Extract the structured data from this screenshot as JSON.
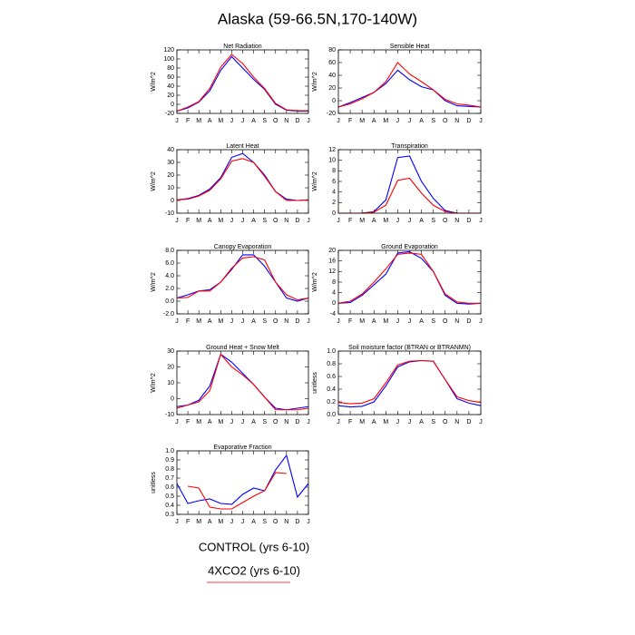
{
  "title": "Alaska (59-66.5N,170-140W)",
  "chart_data": [
    {
      "type": "line",
      "title": "Net Radiation",
      "ylabel": "W/m^2",
      "categories": [
        "J",
        "F",
        "M",
        "A",
        "M",
        "J",
        "J",
        "A",
        "S",
        "O",
        "N",
        "D",
        "J"
      ],
      "ylim": [
        -20,
        120
      ],
      "yticks": [
        -20,
        0,
        20,
        40,
        60,
        80,
        100,
        120
      ],
      "series": [
        {
          "name": "CONTROL (yrs 6-10)",
          "color": "#0000ff",
          "values": [
            -15,
            -8,
            5,
            30,
            75,
            105,
            80,
            55,
            33,
            0,
            -13,
            -15,
            -15
          ]
        },
        {
          "name": "4XCO2 (yrs 6-10)",
          "color": "#ff0000",
          "values": [
            -15,
            -6,
            6,
            35,
            82,
            110,
            90,
            60,
            35,
            2,
            -12,
            -14,
            -14
          ]
        }
      ]
    },
    {
      "type": "line",
      "title": "Sensible Heat",
      "ylabel": "W/m^2",
      "categories": [
        "J",
        "F",
        "M",
        "A",
        "M",
        "J",
        "J",
        "A",
        "S",
        "O",
        "N",
        "D",
        "J"
      ],
      "ylim": [
        -20,
        80
      ],
      "yticks": [
        -20,
        0,
        20,
        40,
        60,
        80
      ],
      "series": [
        {
          "name": "CONTROL (yrs 6-10)",
          "color": "#0000ff",
          "values": [
            -10,
            -3,
            5,
            13,
            27,
            48,
            33,
            22,
            17,
            0,
            -8,
            -9,
            -10
          ]
        },
        {
          "name": "4XCO2 (yrs 6-10)",
          "color": "#ff0000",
          "values": [
            -10,
            -5,
            3,
            13,
            30,
            60,
            42,
            30,
            17,
            2,
            -5,
            -7,
            -10
          ]
        }
      ]
    },
    {
      "type": "line",
      "title": "Latent Heat",
      "ylabel": "W/m^2",
      "categories": [
        "J",
        "F",
        "M",
        "A",
        "M",
        "J",
        "J",
        "A",
        "S",
        "O",
        "N",
        "D",
        "J"
      ],
      "ylim": [
        -10,
        40
      ],
      "yticks": [
        -10,
        0,
        10,
        20,
        30,
        40
      ],
      "series": [
        {
          "name": "CONTROL (yrs 6-10)",
          "color": "#0000ff",
          "values": [
            0.5,
            1.5,
            4,
            9,
            18,
            34,
            37,
            30,
            20,
            7,
            1,
            0,
            0.5
          ]
        },
        {
          "name": "4XCO2 (yrs 6-10)",
          "color": "#ff0000",
          "values": [
            0.5,
            1,
            3.5,
            8,
            17,
            31,
            33,
            30,
            19,
            7,
            0,
            0,
            0.5
          ]
        }
      ]
    },
    {
      "type": "line",
      "title": "Transpiration",
      "ylabel": "W/m^2",
      "categories": [
        "J",
        "F",
        "M",
        "A",
        "M",
        "J",
        "J",
        "A",
        "S",
        "O",
        "N",
        "D",
        "J"
      ],
      "ylim": [
        0,
        12
      ],
      "yticks": [
        0,
        2,
        4,
        6,
        8,
        10,
        12
      ],
      "series": [
        {
          "name": "CONTROL (yrs 6-10)",
          "color": "#0000ff",
          "values": [
            0,
            0,
            0,
            0.3,
            2.5,
            10.5,
            10.8,
            6,
            2.8,
            0.5,
            0,
            0,
            0
          ]
        },
        {
          "name": "4XCO2 (yrs 6-10)",
          "color": "#ff0000",
          "values": [
            0,
            0,
            0,
            0.2,
            1.5,
            6.2,
            6.6,
            3.8,
            1.5,
            0.3,
            0,
            0,
            0
          ]
        }
      ]
    },
    {
      "type": "line",
      "title": "Canopy Evaporation",
      "ylabel": "W/m^2",
      "categories": [
        "J",
        "F",
        "M",
        "A",
        "M",
        "J",
        "J",
        "A",
        "S",
        "O",
        "N",
        "D",
        "J"
      ],
      "ylim": [
        -2,
        8
      ],
      "yticks": [
        {
          "value": -2,
          "label": "-2.0"
        },
        {
          "value": 0,
          "label": "0.0"
        },
        {
          "value": 2,
          "label": "2.0"
        },
        {
          "value": 4,
          "label": "4.0"
        },
        {
          "value": 6,
          "label": "6.0"
        },
        {
          "value": 8,
          "label": "8.0"
        }
      ],
      "series": [
        {
          "name": "CONTROL (yrs 6-10)",
          "color": "#0000ff",
          "values": [
            0.5,
            1,
            1.6,
            1.8,
            3,
            5,
            7.3,
            7.3,
            5.5,
            3,
            0.5,
            0,
            0.5
          ]
        },
        {
          "name": "4XCO2 (yrs 6-10)",
          "color": "#ff0000",
          "values": [
            0.5,
            0.6,
            1.6,
            1.6,
            3,
            5.2,
            6.8,
            7,
            6.5,
            3,
            1,
            0.2,
            0.5
          ]
        }
      ]
    },
    {
      "type": "line",
      "title": "Ground Evaporation",
      "ylabel": "W/m^2",
      "categories": [
        "J",
        "F",
        "M",
        "A",
        "M",
        "J",
        "J",
        "A",
        "S",
        "O",
        "N",
        "D",
        "J"
      ],
      "ylim": [
        -4,
        20
      ],
      "yticks": [
        -4,
        0,
        4,
        8,
        12,
        16,
        20
      ],
      "series": [
        {
          "name": "CONTROL (yrs 6-10)",
          "color": "#0000ff",
          "values": [
            0,
            0.3,
            3,
            7,
            11,
            19,
            19.5,
            17,
            12,
            3,
            0,
            -0.3,
            0
          ]
        },
        {
          "name": "4XCO2 (yrs 6-10)",
          "color": "#ff0000",
          "values": [
            0,
            0.8,
            3.5,
            8,
            13,
            18.5,
            19,
            18.5,
            12,
            3.5,
            0.5,
            0,
            0
          ]
        }
      ]
    },
    {
      "type": "line",
      "title": "Ground Heat + Snow Melt",
      "ylabel": "W/m^2",
      "categories": [
        "J",
        "F",
        "M",
        "A",
        "M",
        "J",
        "J",
        "A",
        "S",
        "O",
        "N",
        "D",
        "J"
      ],
      "ylim": [
        -10,
        30
      ],
      "yticks": [
        -10,
        0,
        10,
        20,
        30
      ],
      "series": [
        {
          "name": "CONTROL (yrs 6-10)",
          "color": "#0000ff",
          "values": [
            -5,
            -4,
            -1,
            8,
            28,
            23,
            16,
            9,
            1,
            -6,
            -7,
            -6,
            -5
          ]
        },
        {
          "name": "4XCO2 (yrs 6-10)",
          "color": "#ff0000",
          "values": [
            -6,
            -4,
            -2,
            5,
            28,
            20,
            15,
            9,
            1,
            -7,
            -7,
            -7,
            -6
          ]
        }
      ]
    },
    {
      "type": "line",
      "title": "Soil moisture factor (BTRAN or BTRANMN)",
      "ylabel": "unitless",
      "categories": [
        "J",
        "F",
        "M",
        "A",
        "M",
        "J",
        "J",
        "A",
        "S",
        "O",
        "N",
        "D",
        "J"
      ],
      "ylim": [
        0,
        1
      ],
      "yticks": [
        {
          "value": 0,
          "label": "0.0"
        },
        0.2,
        0.4,
        0.6,
        0.8,
        {
          "value": 1,
          "label": "1.0"
        }
      ],
      "series": [
        {
          "name": "CONTROL (yrs 6-10)",
          "color": "#0000ff",
          "values": [
            0.14,
            0.12,
            0.13,
            0.2,
            0.45,
            0.75,
            0.83,
            0.85,
            0.84,
            0.55,
            0.25,
            0.18,
            0.14
          ]
        },
        {
          "name": "4XCO2 (yrs 6-10)",
          "color": "#ff0000",
          "values": [
            0.19,
            0.17,
            0.18,
            0.25,
            0.5,
            0.78,
            0.84,
            0.85,
            0.84,
            0.55,
            0.28,
            0.22,
            0.19
          ]
        }
      ]
    },
    {
      "type": "line",
      "title": "Evaporative Fraction",
      "ylabel": "unitless",
      "categories": [
        "J",
        "F",
        "M",
        "A",
        "M",
        "J",
        "J",
        "A",
        "S",
        "O",
        "N",
        "D",
        "J"
      ],
      "ylim": [
        0.3,
        1
      ],
      "yticks": [
        0.3,
        0.4,
        0.5,
        0.6,
        0.7,
        0.8,
        0.9,
        {
          "value": 1,
          "label": "1.0"
        }
      ],
      "series": [
        {
          "name": "CONTROL (yrs 6-10)",
          "color": "#0000ff",
          "values": [
            0.64,
            0.42,
            0.45,
            0.47,
            0.42,
            0.41,
            0.52,
            0.59,
            0.56,
            0.79,
            0.95,
            0.49,
            0.64
          ]
        },
        {
          "name": "4XCO2 (yrs 6-10)",
          "color": "#ff0000",
          "values": [
            null,
            0.61,
            0.59,
            0.38,
            0.36,
            0.36,
            0.43,
            0.5,
            0.56,
            0.76,
            0.75,
            null,
            null
          ]
        }
      ]
    }
  ]
}
